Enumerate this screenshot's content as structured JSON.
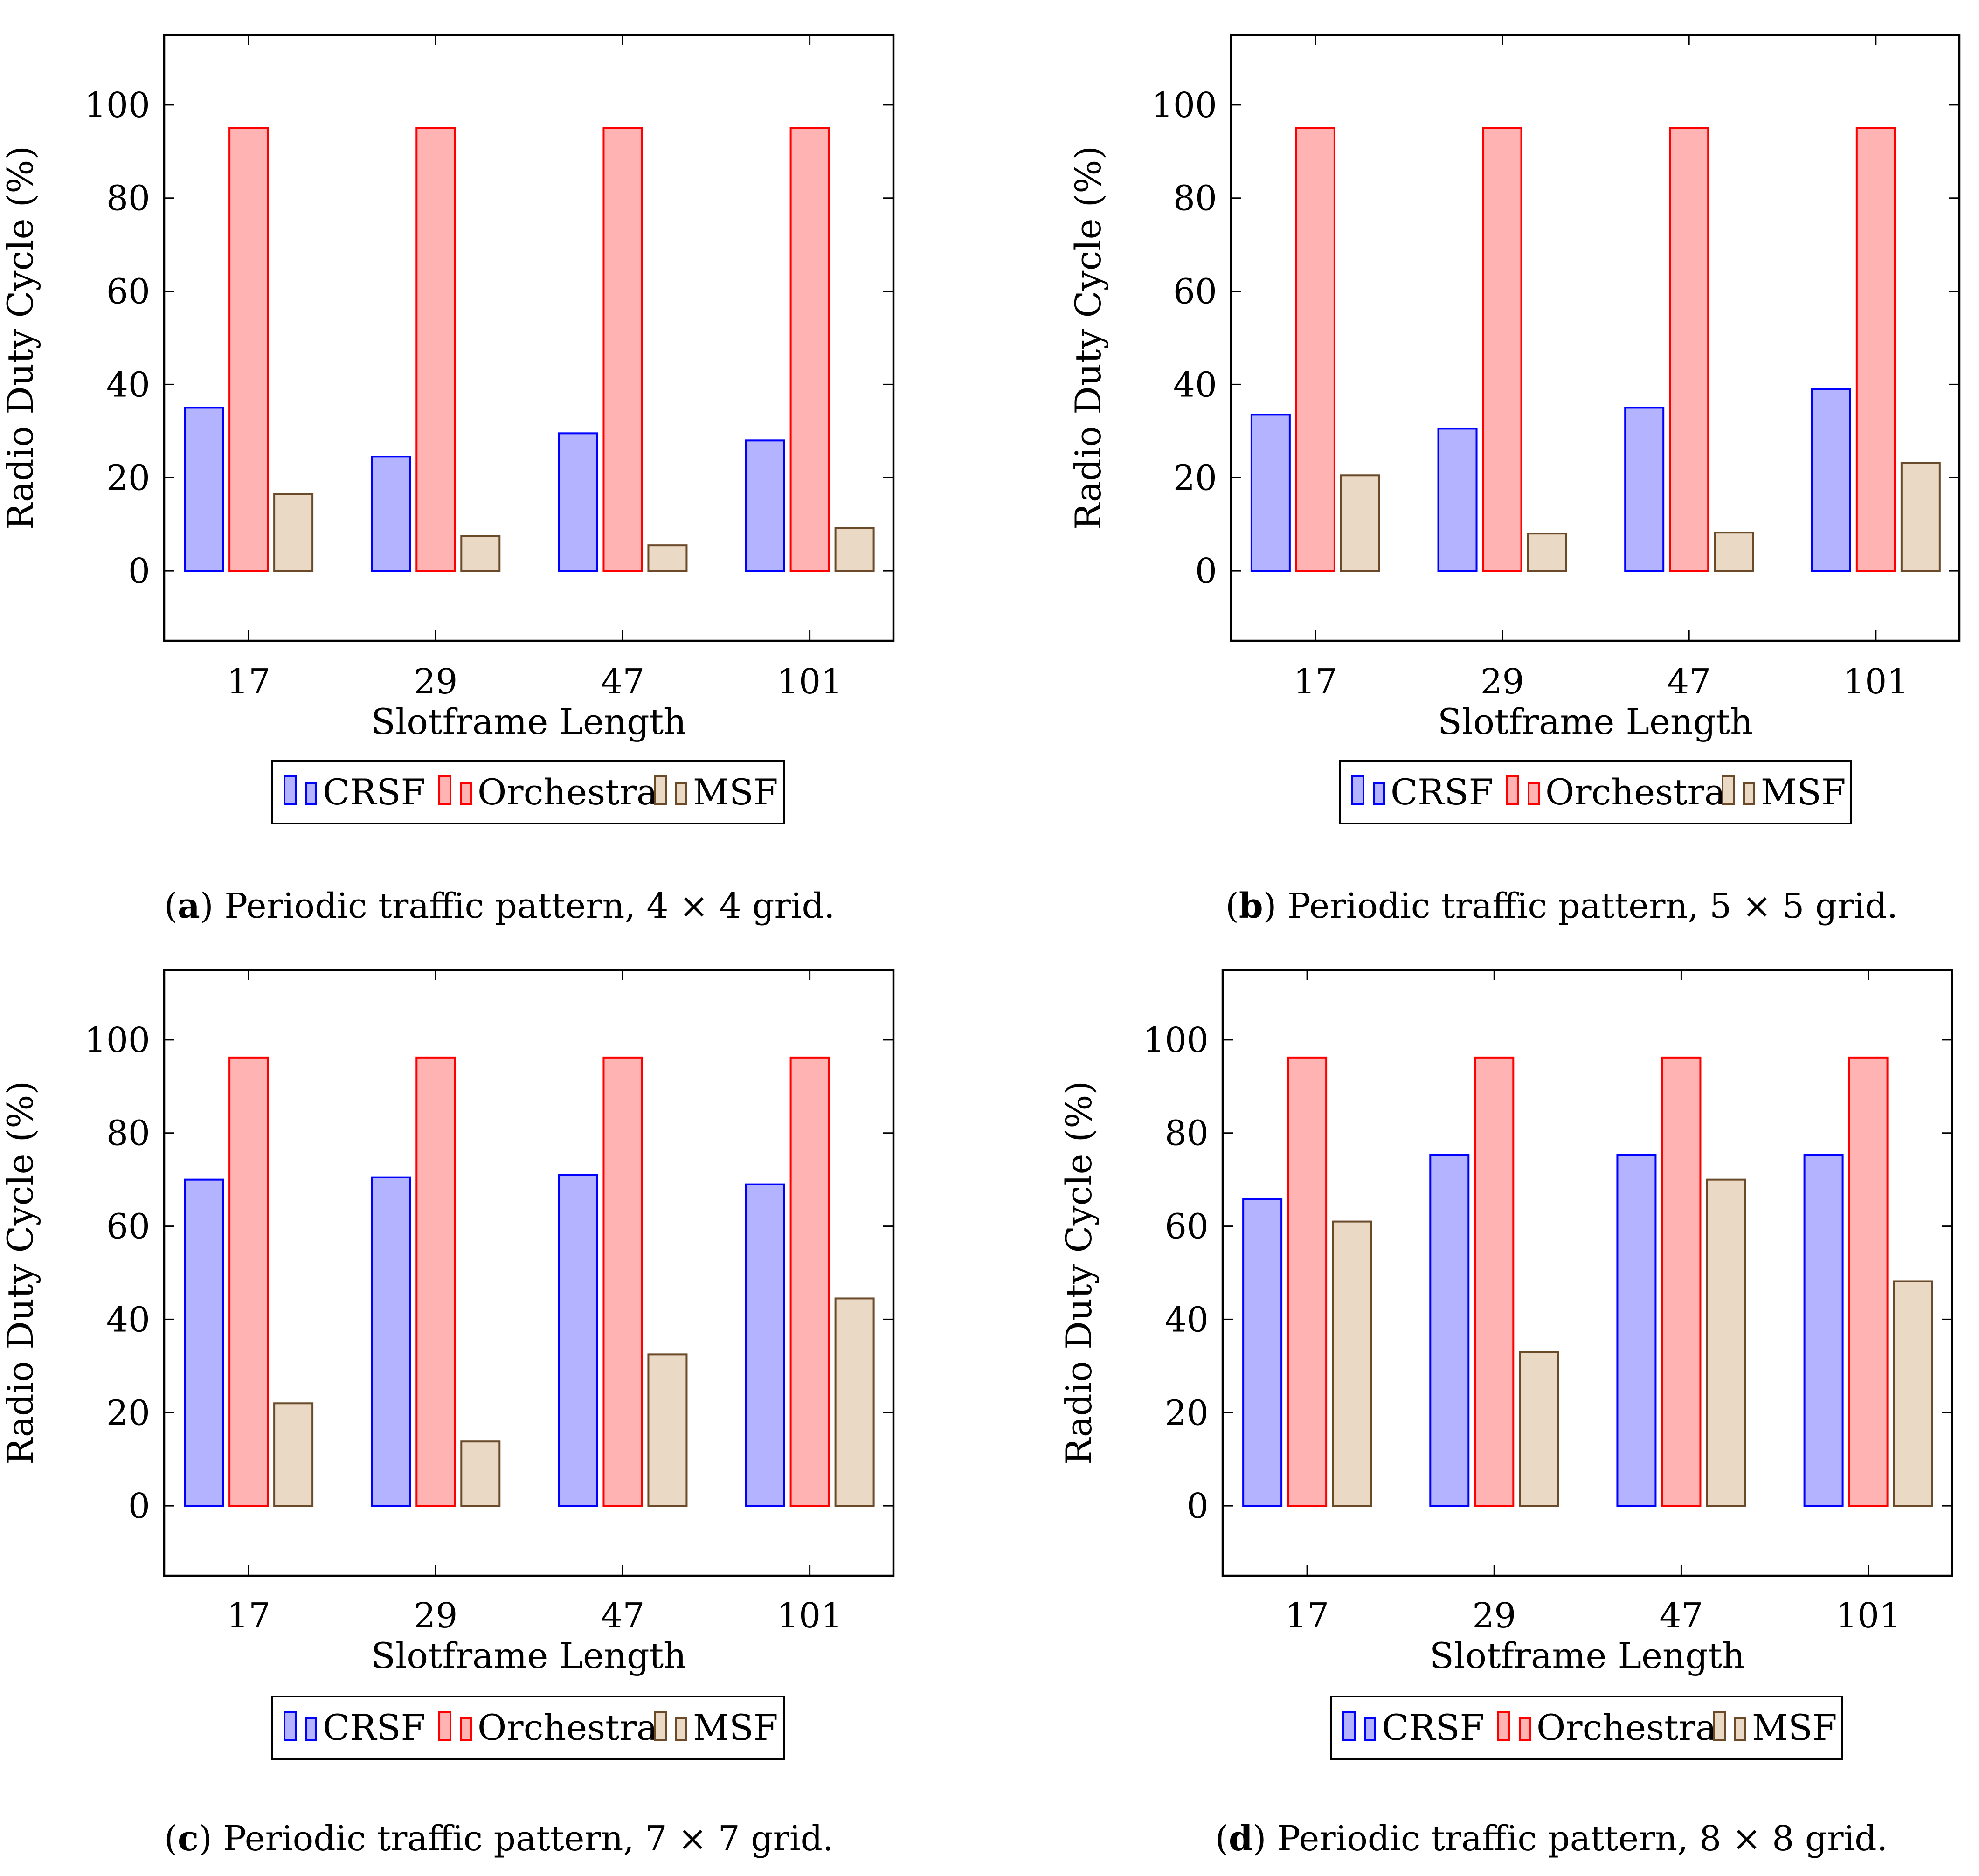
{
  "colors": {
    "CRSF": {
      "fill": "#b3b3ff",
      "stroke": "#0000ff"
    },
    "Orchestra": {
      "fill": "#ffb3b3",
      "stroke": "#ff0000"
    },
    "MSF": {
      "fill": "#e9d9c5",
      "stroke": "#6b4a2a"
    }
  },
  "chart_data": [
    {
      "type": "bar",
      "panel_letter": "a",
      "caption_text": "Periodic traffic pattern, 4 × 4 grid.",
      "xlabel": "Slotframe Length",
      "ylabel": "Radio Duty Cycle (%)",
      "categories": [
        "17",
        "29",
        "47",
        "101"
      ],
      "ylim": [
        -15,
        115
      ],
      "yticks": [
        0,
        20,
        40,
        60,
        80,
        100
      ],
      "legend_position": "bottom",
      "series": [
        {
          "name": "CRSF",
          "values": [
            35,
            24.5,
            29.5,
            28
          ]
        },
        {
          "name": "Orchestra",
          "values": [
            95,
            95,
            95,
            95
          ]
        },
        {
          "name": "MSF",
          "values": [
            16.5,
            7.5,
            5.5,
            9.2
          ]
        }
      ]
    },
    {
      "type": "bar",
      "panel_letter": "b",
      "caption_text": "Periodic traffic pattern, 5 × 5 grid.",
      "xlabel": "Slotframe Length",
      "ylabel": "Radio Duty Cycle (%)",
      "categories": [
        "17",
        "29",
        "47",
        "101"
      ],
      "ylim": [
        -15,
        115
      ],
      "yticks": [
        0,
        20,
        40,
        60,
        80,
        100
      ],
      "legend_position": "bottom",
      "series": [
        {
          "name": "CRSF",
          "values": [
            33.5,
            30.5,
            35,
            39
          ]
        },
        {
          "name": "Orchestra",
          "values": [
            95,
            95,
            95,
            95
          ]
        },
        {
          "name": "MSF",
          "values": [
            20.5,
            8,
            8.2,
            23.2
          ]
        }
      ]
    },
    {
      "type": "bar",
      "panel_letter": "c",
      "caption_text": "Periodic traffic pattern, 7 × 7 grid.",
      "xlabel": "Slotframe Length",
      "ylabel": "Radio Duty Cycle (%)",
      "categories": [
        "17",
        "29",
        "47",
        "101"
      ],
      "ylim": [
        -15,
        115
      ],
      "yticks": [
        0,
        20,
        40,
        60,
        80,
        100
      ],
      "legend_position": "bottom",
      "series": [
        {
          "name": "CRSF",
          "values": [
            70,
            70.5,
            71,
            69
          ]
        },
        {
          "name": "Orchestra",
          "values": [
            96.2,
            96.2,
            96.2,
            96.2
          ]
        },
        {
          "name": "MSF",
          "values": [
            22,
            13.8,
            32.5,
            44.5
          ]
        }
      ]
    },
    {
      "type": "bar",
      "panel_letter": "d",
      "caption_text": "Periodic traffic pattern, 8 × 8 grid.",
      "xlabel": "Slotframe Length",
      "ylabel": "Radio Duty Cycle (%)",
      "categories": [
        "17",
        "29",
        "47",
        "101"
      ],
      "ylim": [
        -15,
        115
      ],
      "yticks": [
        0,
        20,
        40,
        60,
        80,
        100
      ],
      "legend_position": "bottom",
      "series": [
        {
          "name": "CRSF",
          "values": [
            65.8,
            75.3,
            75.3,
            75.3
          ]
        },
        {
          "name": "Orchestra",
          "values": [
            96.2,
            96.2,
            96.2,
            96.2
          ]
        },
        {
          "name": "MSF",
          "values": [
            61,
            33,
            70,
            48.2
          ]
        }
      ]
    }
  ]
}
